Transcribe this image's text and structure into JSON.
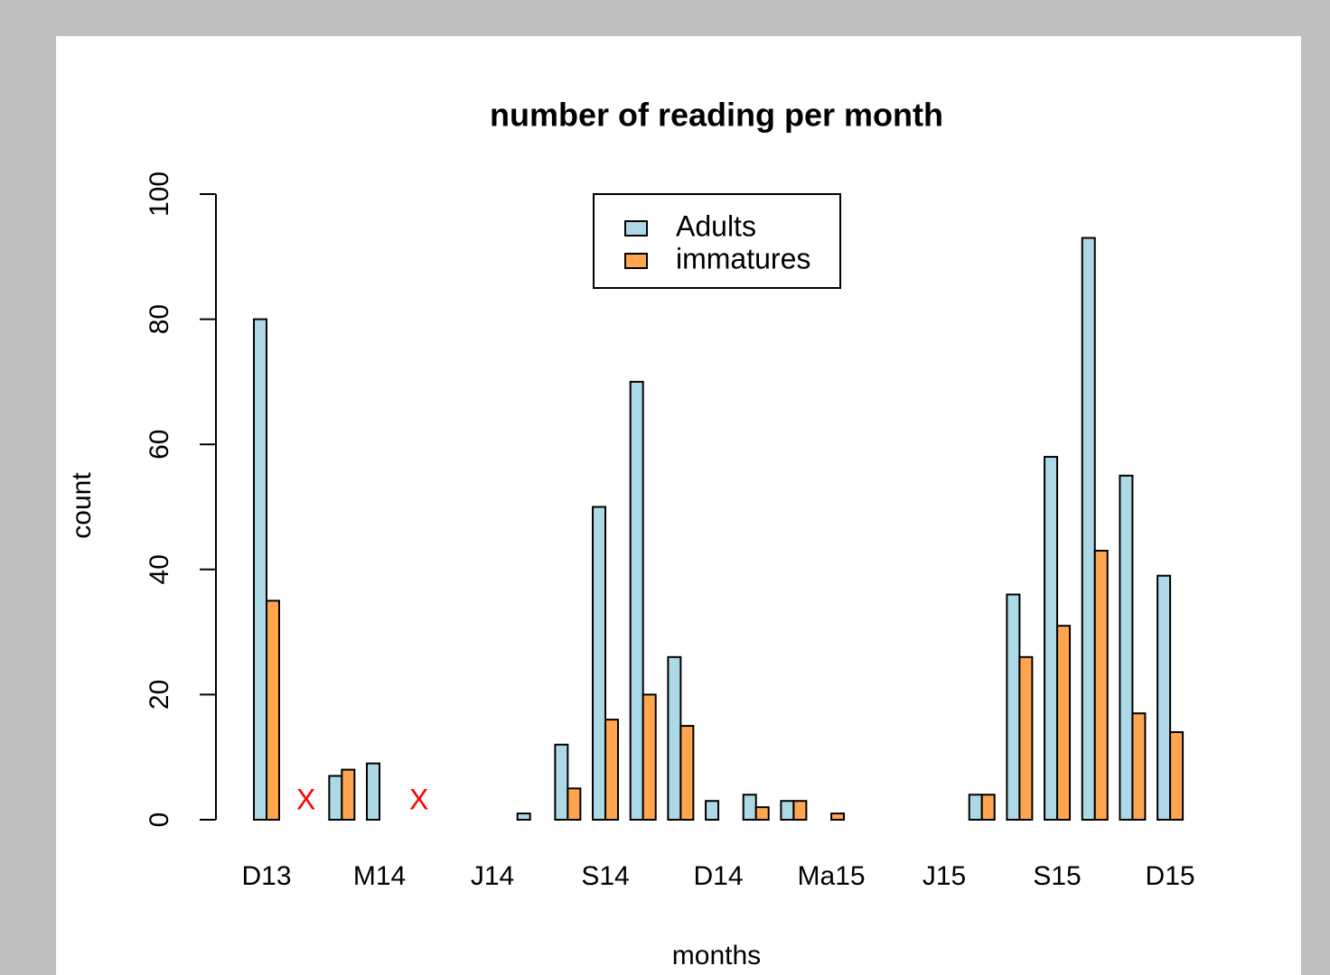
{
  "chart_data": {
    "type": "bar",
    "title": "number of reading per month",
    "x_label": "months",
    "y_label": "count",
    "categories": [
      "D13",
      null,
      null,
      "M14",
      null,
      null,
      "J14",
      null,
      null,
      "S14",
      null,
      null,
      "D14",
      null,
      null,
      "Ma15",
      null,
      null,
      "J15",
      null,
      null,
      "S15",
      null,
      null,
      "D15"
    ],
    "series": [
      {
        "name": "Adults",
        "color": "#add8e6",
        "values": [
          80,
          null,
          7,
          9,
          null,
          0,
          0,
          1,
          12,
          50,
          70,
          26,
          3,
          4,
          3,
          0,
          0,
          0,
          0,
          4,
          36,
          58,
          93,
          55,
          39
        ]
      },
      {
        "name": "immatures",
        "color": "#ffa54f",
        "values": [
          35,
          null,
          8,
          0,
          null,
          0,
          0,
          0,
          5,
          16,
          20,
          15,
          0,
          2,
          3,
          1,
          0,
          0,
          0,
          4,
          26,
          31,
          43,
          17,
          14
        ]
      }
    ],
    "missing_marker": "X",
    "missing_color": "#ff0000",
    "ylim": [
      0,
      100
    ],
    "yticks": [
      0,
      20,
      40,
      60,
      80,
      100
    ],
    "legend": "top"
  }
}
